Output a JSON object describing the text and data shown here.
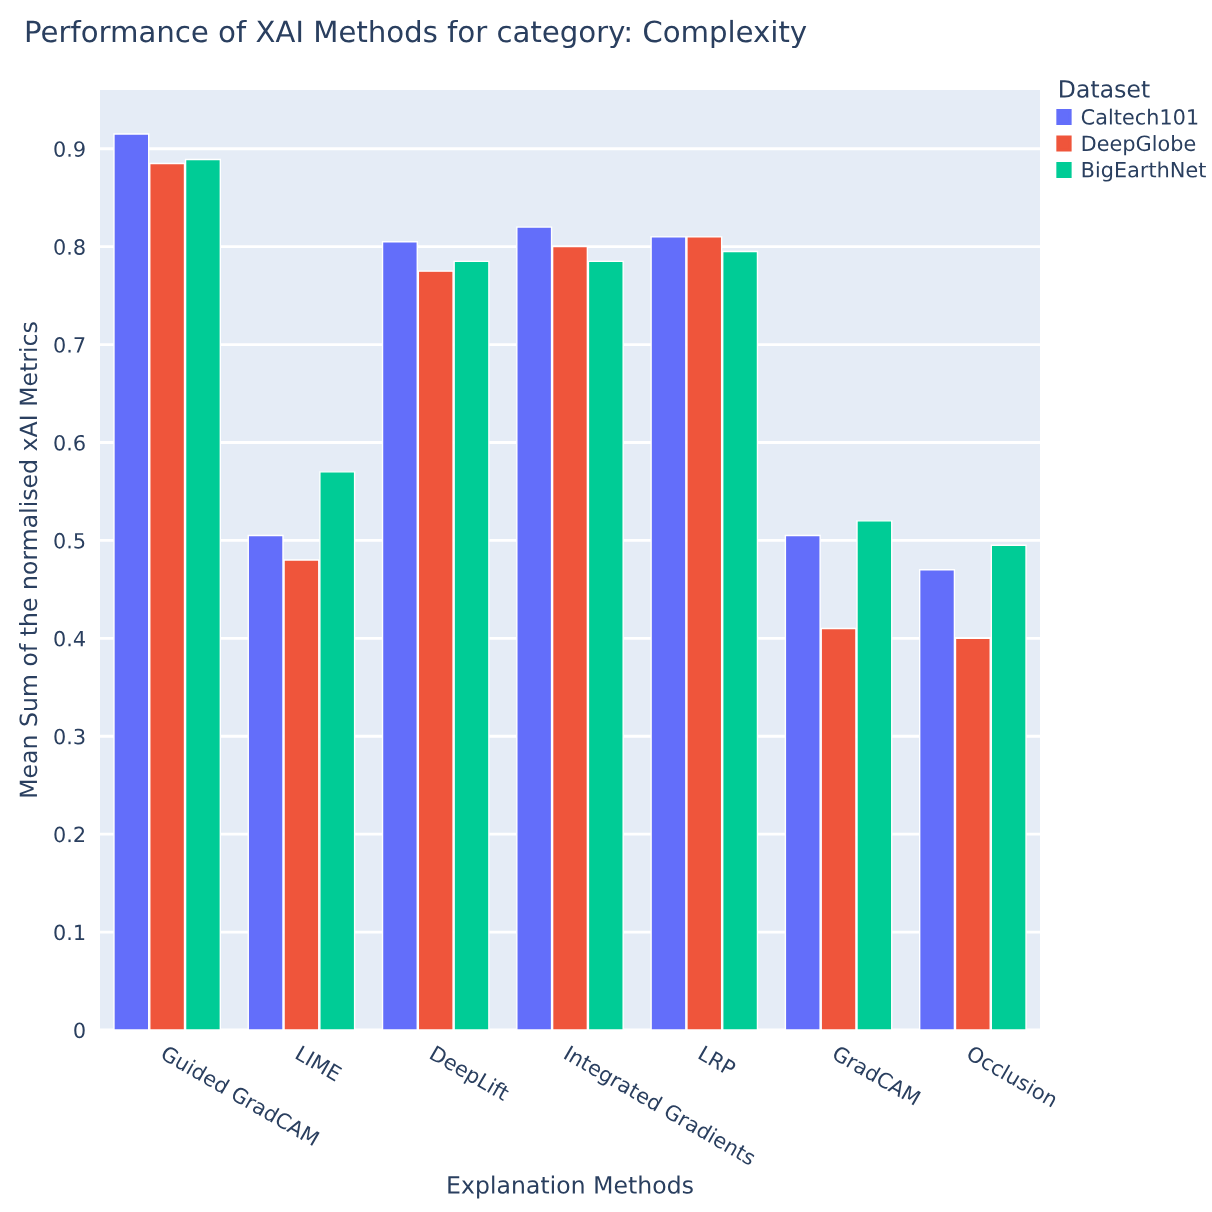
{
  "chart_data": {
    "type": "bar",
    "title": "Performance of XAI Methods for category: Complexity",
    "xlabel": "Explanation Methods",
    "ylabel": "Mean Sum of the normalised xAI Metrics",
    "legend_title": "Dataset",
    "categories": [
      "Guided GradCAM",
      "LIME",
      "DeepLift",
      "Integrated Gradients",
      "LRP",
      "GradCAM",
      "Occlusion"
    ],
    "series": [
      {
        "name": "Caltech101",
        "color": "#636efa",
        "values": [
          0.915,
          0.505,
          0.805,
          0.82,
          0.81,
          0.505,
          0.47
        ]
      },
      {
        "name": "DeepGlobe",
        "color": "#ef553b",
        "values": [
          0.885,
          0.48,
          0.775,
          0.8,
          0.81,
          0.41,
          0.4
        ]
      },
      {
        "name": "BigEarthNet",
        "color": "#00cc96",
        "values": [
          0.889,
          0.57,
          0.785,
          0.785,
          0.795,
          0.52,
          0.495
        ]
      }
    ],
    "ylim": [
      0,
      0.96
    ],
    "yticks": [
      0,
      0.1,
      0.2,
      0.3,
      0.4,
      0.5,
      0.6,
      0.7,
      0.8,
      0.9
    ],
    "grid": "y",
    "legend": "top right"
  }
}
